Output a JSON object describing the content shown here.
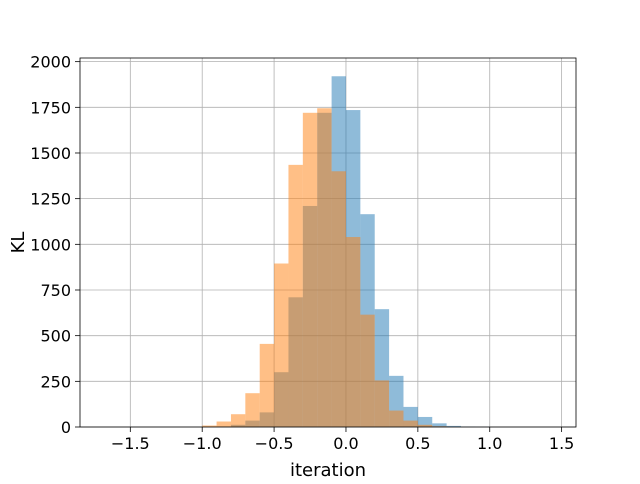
{
  "chart_data": {
    "type": "bar",
    "subtype": "overlapping-histogram",
    "title": "",
    "xlabel": "iteration",
    "ylabel": "KL",
    "xlim": [
      -1.85,
      1.6
    ],
    "ylim": [
      0,
      2020
    ],
    "grid": true,
    "legend": "none",
    "x_ticks": [
      -1.5,
      -1.0,
      -0.5,
      0.0,
      0.5,
      1.0,
      1.5
    ],
    "x_tick_labels": [
      "−1.5",
      "−1.0",
      "−0.5",
      "0.0",
      "0.5",
      "1.0",
      "1.5"
    ],
    "y_ticks": [
      0,
      250,
      500,
      750,
      1000,
      1250,
      1500,
      1750,
      2000
    ],
    "y_tick_labels": [
      "0",
      "250",
      "500",
      "750",
      "1000",
      "1250",
      "1500",
      "1750",
      "2000"
    ],
    "series": [
      {
        "color": "#1f77b4",
        "alpha": 0.5,
        "bin_width": 0.1,
        "bin_starts": [
          -1.7,
          -1.6,
          -1.5,
          -1.4,
          -1.3,
          -1.2,
          -1.1,
          -1.0,
          -0.9,
          -0.8,
          -0.7,
          -0.6,
          -0.5,
          -0.4,
          -0.3,
          -0.2,
          -0.1,
          0.0,
          0.1,
          0.2,
          0.3,
          0.4,
          0.5,
          0.6,
          0.7,
          0.8,
          0.9,
          1.0,
          1.1,
          1.2,
          1.3,
          1.4
        ],
        "values": [
          0,
          0,
          0,
          0,
          0,
          0,
          0,
          1,
          3,
          12,
          35,
          80,
          300,
          710,
          1210,
          1720,
          1920,
          1735,
          1165,
          645,
          280,
          110,
          55,
          20,
          6,
          2,
          1,
          0,
          0,
          0,
          0,
          0
        ]
      },
      {
        "color": "#ff7f0e",
        "alpha": 0.5,
        "bin_width": 0.1,
        "bin_starts": [
          -1.7,
          -1.6,
          -1.5,
          -1.4,
          -1.3,
          -1.2,
          -1.1,
          -1.0,
          -0.9,
          -0.8,
          -0.7,
          -0.6,
          -0.5,
          -0.4,
          -0.3,
          -0.2,
          -0.1,
          0.0,
          0.1,
          0.2,
          0.3,
          0.4,
          0.5,
          0.6,
          0.7,
          0.8,
          0.9,
          1.0,
          1.1,
          1.2,
          1.3,
          1.4
        ],
        "values": [
          0,
          0,
          0,
          0,
          0,
          0,
          0,
          8,
          30,
          70,
          185,
          455,
          895,
          1435,
          1720,
          1745,
          1400,
          1040,
          615,
          255,
          90,
          35,
          12,
          4,
          1,
          0,
          0,
          0,
          0,
          0,
          0,
          0
        ]
      }
    ]
  }
}
